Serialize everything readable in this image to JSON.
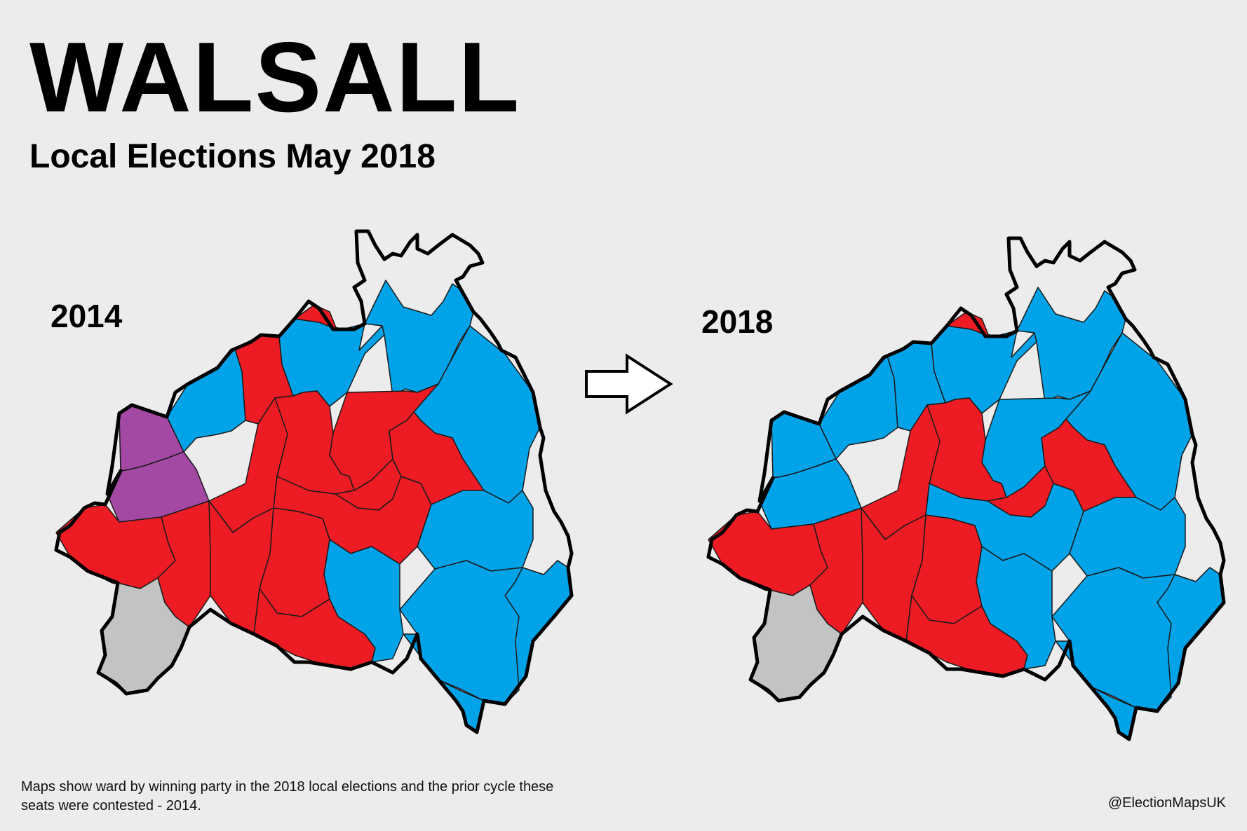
{
  "header": {
    "title": "WALSALL",
    "subtitle": "Local Elections May 2018"
  },
  "maps": [
    {
      "year": "2014"
    },
    {
      "year": "2018"
    }
  ],
  "footer": {
    "note": "Maps show ward by winning party in the 2018 local elections and the prior cycle these seats were contested - 2014.",
    "credit": "@ElectionMapsUK"
  },
  "colors": {
    "conservative": "#00a2e8",
    "labour": "#ed1c24",
    "independent_purple": "#a349a4",
    "no_election": "#c3c3c3",
    "background": "#ececec"
  },
  "wards_2014": [
    "purple",
    "purple",
    "blue",
    "red",
    "blue",
    "blue",
    "red",
    "blue",
    "red",
    "red",
    "red",
    "red",
    "red",
    "red",
    "blue",
    "blue",
    "red",
    "red",
    "red",
    "red",
    "red",
    "blue",
    "blue",
    "blue",
    "grey"
  ],
  "wards_2018": [
    "blue",
    "blue",
    "blue",
    "blue",
    "blue",
    "blue",
    "blue",
    "blue",
    "red",
    "red",
    "red",
    "red",
    "blue",
    "red",
    "blue",
    "blue",
    "red",
    "red",
    "red",
    "red",
    "red",
    "blue",
    "blue",
    "blue",
    "grey"
  ]
}
